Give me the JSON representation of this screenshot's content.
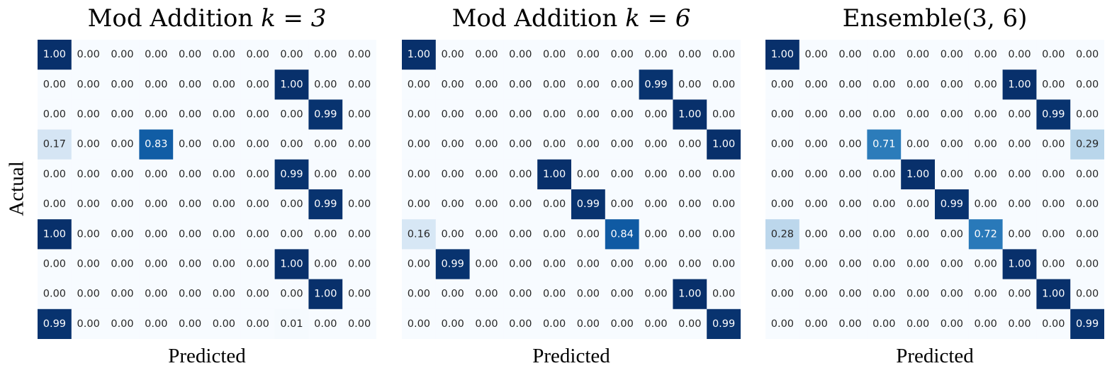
{
  "ylabel": "Actual",
  "colormap": [
    "#f7fbff",
    "#deebf7",
    "#c6dbef",
    "#9ecae1",
    "#6baed6",
    "#4292c6",
    "#2171b5",
    "#08519c",
    "#08306b"
  ],
  "chart_data": [
    {
      "type": "heatmap",
      "title": "Mod Addition",
      "title_math": "k = 3",
      "xlabel": "Predicted",
      "rows": [
        [
          1.0,
          0.0,
          0.0,
          0.0,
          0.0,
          0.0,
          0.0,
          0.0,
          0.0,
          0.0
        ],
        [
          0.0,
          0.0,
          0.0,
          0.0,
          0.0,
          0.0,
          0.0,
          1.0,
          0.0,
          0.0
        ],
        [
          0.0,
          0.0,
          0.0,
          0.0,
          0.0,
          0.0,
          0.0,
          0.0,
          0.99,
          0.0
        ],
        [
          0.17,
          0.0,
          0.0,
          0.83,
          0.0,
          0.0,
          0.0,
          0.0,
          0.0,
          0.0
        ],
        [
          0.0,
          0.0,
          0.0,
          0.0,
          0.0,
          0.0,
          0.0,
          0.99,
          0.0,
          0.0
        ],
        [
          0.0,
          0.0,
          0.0,
          0.0,
          0.0,
          0.0,
          0.0,
          0.0,
          0.99,
          0.0
        ],
        [
          1.0,
          0.0,
          0.0,
          0.0,
          0.0,
          0.0,
          0.0,
          0.0,
          0.0,
          0.0
        ],
        [
          0.0,
          0.0,
          0.0,
          0.0,
          0.0,
          0.0,
          0.0,
          1.0,
          0.0,
          0.0
        ],
        [
          0.0,
          0.0,
          0.0,
          0.0,
          0.0,
          0.0,
          0.0,
          0.0,
          1.0,
          0.0
        ],
        [
          0.99,
          0.0,
          0.0,
          0.0,
          0.0,
          0.0,
          0.0,
          0.01,
          0.0,
          0.0
        ]
      ]
    },
    {
      "type": "heatmap",
      "title": "Mod Addition",
      "title_math": "k = 6",
      "xlabel": "Predicted",
      "rows": [
        [
          1.0,
          0.0,
          0.0,
          0.0,
          0.0,
          0.0,
          0.0,
          0.0,
          0.0,
          0.0
        ],
        [
          0.0,
          0.0,
          0.0,
          0.0,
          0.0,
          0.0,
          0.0,
          0.99,
          0.0,
          0.0
        ],
        [
          0.0,
          0.0,
          0.0,
          0.0,
          0.0,
          0.0,
          0.0,
          0.0,
          1.0,
          0.0
        ],
        [
          0.0,
          0.0,
          0.0,
          0.0,
          0.0,
          0.0,
          0.0,
          0.0,
          0.0,
          1.0
        ],
        [
          0.0,
          0.0,
          0.0,
          0.0,
          1.0,
          0.0,
          0.0,
          0.0,
          0.0,
          0.0
        ],
        [
          0.0,
          0.0,
          0.0,
          0.0,
          0.0,
          0.99,
          0.0,
          0.0,
          0.0,
          0.0
        ],
        [
          0.16,
          0.0,
          0.0,
          0.0,
          0.0,
          0.0,
          0.84,
          0.0,
          0.0,
          0.0
        ],
        [
          0.0,
          0.99,
          0.0,
          0.0,
          0.0,
          0.0,
          0.0,
          0.0,
          0.0,
          0.0
        ],
        [
          0.0,
          0.0,
          0.0,
          0.0,
          0.0,
          0.0,
          0.0,
          0.0,
          1.0,
          0.0
        ],
        [
          0.0,
          0.0,
          0.0,
          0.0,
          0.0,
          0.0,
          0.0,
          0.0,
          0.0,
          0.99
        ]
      ]
    },
    {
      "type": "heatmap",
      "title": "Ensemble(3, 6)",
      "title_math": "",
      "xlabel": "Predicted",
      "rows": [
        [
          1.0,
          0.0,
          0.0,
          0.0,
          0.0,
          0.0,
          0.0,
          0.0,
          0.0,
          0.0
        ],
        [
          0.0,
          0.0,
          0.0,
          0.0,
          0.0,
          0.0,
          0.0,
          1.0,
          0.0,
          0.0
        ],
        [
          0.0,
          0.0,
          0.0,
          0.0,
          0.0,
          0.0,
          0.0,
          0.0,
          0.99,
          0.0
        ],
        [
          0.0,
          0.0,
          0.0,
          0.71,
          0.0,
          0.0,
          0.0,
          0.0,
          0.0,
          0.29
        ],
        [
          0.0,
          0.0,
          0.0,
          0.0,
          1.0,
          0.0,
          0.0,
          0.0,
          0.0,
          0.0
        ],
        [
          0.0,
          0.0,
          0.0,
          0.0,
          0.0,
          0.99,
          0.0,
          0.0,
          0.0,
          0.0
        ],
        [
          0.28,
          0.0,
          0.0,
          0.0,
          0.0,
          0.0,
          0.72,
          0.0,
          0.0,
          0.0
        ],
        [
          0.0,
          0.0,
          0.0,
          0.0,
          0.0,
          0.0,
          0.0,
          1.0,
          0.0,
          0.0
        ],
        [
          0.0,
          0.0,
          0.0,
          0.0,
          0.0,
          0.0,
          0.0,
          0.0,
          1.0,
          0.0
        ],
        [
          0.0,
          0.0,
          0.0,
          0.0,
          0.0,
          0.0,
          0.0,
          0.0,
          0.0,
          0.99
        ]
      ]
    }
  ]
}
